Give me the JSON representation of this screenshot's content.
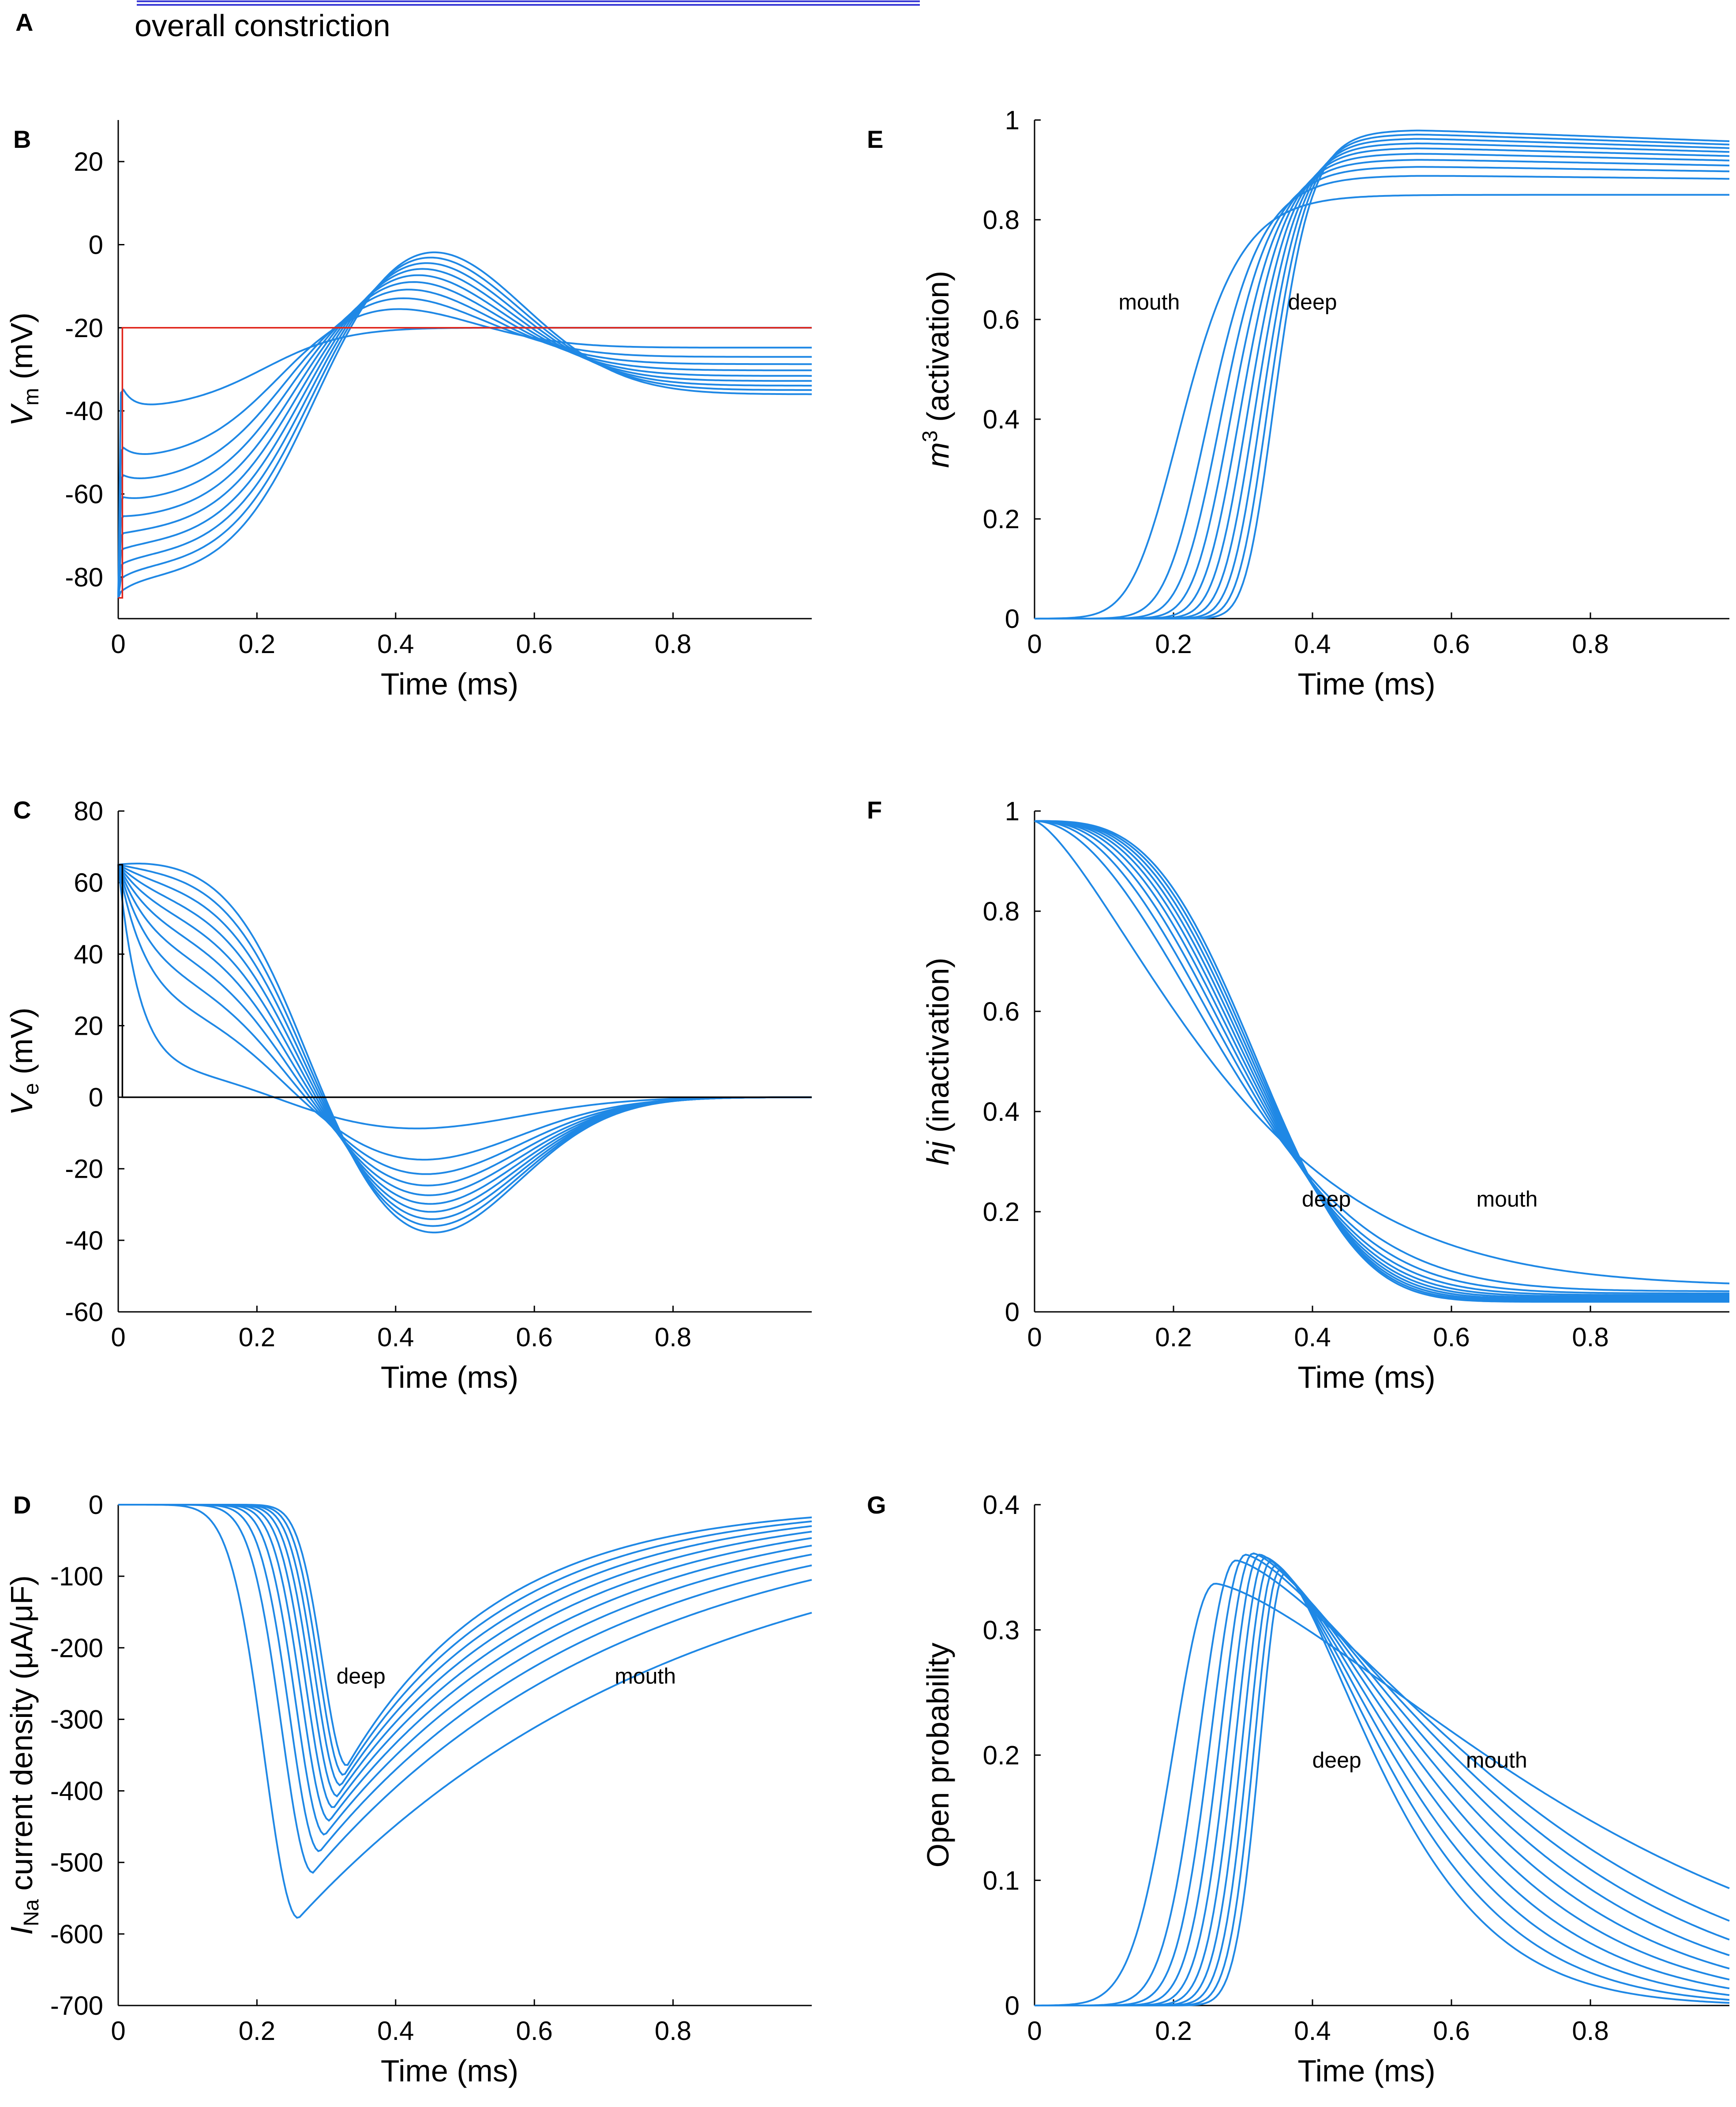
{
  "header": {
    "panel_a_letter": "A",
    "panel_a_caption": "overall constriction",
    "bar_color": "#3b3bd6"
  },
  "style": {
    "curve_color": "#1f88e5",
    "red_color": "#e0251b",
    "black_color": "#000000"
  },
  "annotations": {
    "mouth": "mouth",
    "deep": "deep"
  },
  "chart_data": [
    {
      "id": "B",
      "letter": "B",
      "type": "line",
      "xlabel": "Time (ms)",
      "ylabel_main": "V",
      "ylabel_sub": "m",
      "ylabel_tail": " (mV)",
      "xlim": [
        0,
        1.0
      ],
      "ylim": [
        -90,
        30
      ],
      "xticks": [
        0,
        0.2,
        0.4,
        0.6,
        0.8
      ],
      "xtick_labels": [
        "0",
        "0.2",
        "0.4",
        "0.6",
        "0.8"
      ],
      "yticks": [
        -80,
        -60,
        -40,
        -20,
        0,
        20
      ],
      "ytick_labels": [
        "-80",
        "-60",
        "-40",
        "-20",
        "0",
        "20"
      ],
      "n_curves": 10,
      "stimulus": {
        "x": [
          0,
          0,
          0.006,
          0.006,
          1.0
        ],
        "y": [
          -85,
          -85,
          -85,
          -20,
          -20
        ],
        "color": "red"
      },
      "annotations": []
    },
    {
      "id": "C",
      "letter": "C",
      "type": "line",
      "xlabel": "Time (ms)",
      "ylabel_main": "V",
      "ylabel_sub": "e",
      "ylabel_tail": " (mV)",
      "xlim": [
        0,
        1.0
      ],
      "ylim": [
        -60,
        80
      ],
      "xticks": [
        0,
        0.2,
        0.4,
        0.6,
        0.8
      ],
      "xtick_labels": [
        "0",
        "0.2",
        "0.4",
        "0.6",
        "0.8"
      ],
      "yticks": [
        -60,
        -40,
        -20,
        0,
        20,
        40,
        60,
        80
      ],
      "ytick_labels": [
        "-60",
        "-40",
        "-20",
        "0",
        "20",
        "40",
        "60",
        "80"
      ],
      "n_curves": 10,
      "stimulus": {
        "x": [
          0,
          0,
          0.006,
          0.006,
          1.0
        ],
        "y": [
          0,
          65,
          65,
          0,
          0
        ],
        "color": "black"
      },
      "annotations": []
    },
    {
      "id": "D",
      "letter": "D",
      "type": "line",
      "xlabel": "Time (ms)",
      "ylabel_main": "I",
      "ylabel_sub": "Na",
      "ylabel_tail": " current density (μA/μF)",
      "xlim": [
        0,
        1.0
      ],
      "ylim": [
        -700,
        0
      ],
      "xticks": [
        0,
        0.2,
        0.4,
        0.6,
        0.8
      ],
      "xtick_labels": [
        "0",
        "0.2",
        "0.4",
        "0.6",
        "0.8"
      ],
      "yticks": [
        -700,
        -600,
        -500,
        -400,
        -300,
        -200,
        -100,
        0
      ],
      "ytick_labels": [
        "-700",
        "-600",
        "-500",
        "-400",
        "-300",
        "-200",
        "-100",
        "0"
      ],
      "n_curves": 10,
      "annotations": [
        {
          "key": "deep",
          "x": 0.35,
          "y": -250
        },
        {
          "key": "mouth",
          "x": 0.76,
          "y": -250
        }
      ]
    },
    {
      "id": "E",
      "letter": "E",
      "type": "line",
      "xlabel": "Time (ms)",
      "ylabel_main": "m",
      "ylabel_sup": "3",
      "ylabel_tail": " (activation)",
      "xlim": [
        0,
        1.0
      ],
      "ylim": [
        0,
        1
      ],
      "xticks": [
        0,
        0.2,
        0.4,
        0.6,
        0.8
      ],
      "xtick_labels": [
        "0",
        "0.2",
        "0.4",
        "0.6",
        "0.8"
      ],
      "yticks": [
        0,
        0.2,
        0.4,
        0.6,
        0.8,
        1
      ],
      "ytick_labels": [
        "0",
        "0.2",
        "0.4",
        "0.6",
        "0.8",
        "1"
      ],
      "n_curves": 10,
      "annotations": [
        {
          "key": "mouth",
          "x": 0.165,
          "y": 0.62
        },
        {
          "key": "deep",
          "x": 0.4,
          "y": 0.62
        }
      ]
    },
    {
      "id": "F",
      "letter": "F",
      "type": "line",
      "xlabel": "Time (ms)",
      "ylabel_main": "hj",
      "ylabel_tail": " (inactivation)",
      "xlim": [
        0,
        1.0
      ],
      "ylim": [
        0,
        1
      ],
      "xticks": [
        0,
        0.2,
        0.4,
        0.6,
        0.8
      ],
      "xtick_labels": [
        "0",
        "0.2",
        "0.4",
        "0.6",
        "0.8"
      ],
      "yticks": [
        0,
        0.2,
        0.4,
        0.6,
        0.8,
        1
      ],
      "ytick_labels": [
        "0",
        "0.2",
        "0.4",
        "0.6",
        "0.8",
        "1"
      ],
      "n_curves": 10,
      "annotations": [
        {
          "key": "deep",
          "x": 0.42,
          "y": 0.21
        },
        {
          "key": "mouth",
          "x": 0.68,
          "y": 0.21
        }
      ]
    },
    {
      "id": "G",
      "letter": "G",
      "type": "line",
      "xlabel": "Time (ms)",
      "ylabel_main": "Open probability",
      "ylabel_tail": "",
      "xlim": [
        0,
        1.0
      ],
      "ylim": [
        0,
        0.4
      ],
      "xticks": [
        0,
        0.2,
        0.4,
        0.6,
        0.8
      ],
      "xtick_labels": [
        "0",
        "0.2",
        "0.4",
        "0.6",
        "0.8"
      ],
      "yticks": [
        0,
        0.1,
        0.2,
        0.3,
        0.4
      ],
      "ytick_labels": [
        "0",
        "0.1",
        "0.2",
        "0.3",
        "0.4"
      ],
      "n_curves": 10,
      "annotations": [
        {
          "key": "deep",
          "x": 0.435,
          "y": 0.19
        },
        {
          "key": "mouth",
          "x": 0.665,
          "y": 0.19
        }
      ]
    }
  ]
}
